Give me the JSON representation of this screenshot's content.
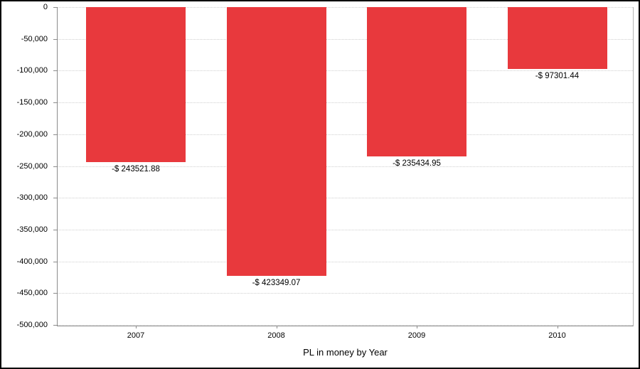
{
  "chart_data": {
    "type": "bar",
    "title": "",
    "xlabel": "PL in money by Year",
    "ylabel": "",
    "categories": [
      "2007",
      "2008",
      "2009",
      "2010"
    ],
    "values": [
      -243521.88,
      -423349.07,
      -235434.95,
      -97301.44
    ],
    "bar_labels": [
      "-$ 243521.88",
      "-$ 423349.07",
      "-$ 235434.95",
      "-$ 97301.44"
    ],
    "y_tick_labels": [
      "0",
      "-50,000",
      "-100,000",
      "-150,000",
      "-200,000",
      "-250,000",
      "-300,000",
      "-350,000",
      "-400,000",
      "-450,000",
      "-500,000"
    ],
    "y_tick_values": [
      0,
      -50000,
      -100000,
      -150000,
      -200000,
      -250000,
      -300000,
      -350000,
      -400000,
      -450000,
      -500000
    ],
    "ylim": [
      -500000,
      0
    ],
    "grid": true,
    "legend_position": "none",
    "bar_color": "#e8393d",
    "gridline_color": "#cfcfcf",
    "axis_color": "#8c8c8c",
    "label_color": "#000000",
    "background_color": "#ffffff",
    "frame_color": "#000000"
  }
}
